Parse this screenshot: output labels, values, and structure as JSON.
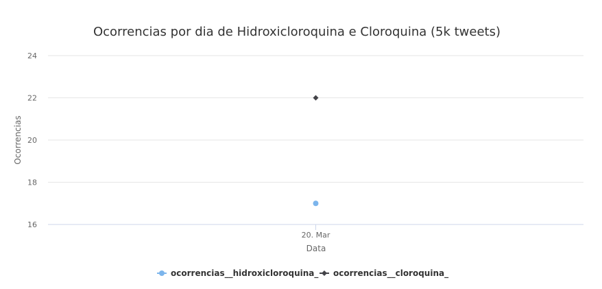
{
  "chart_data": {
    "type": "scatter",
    "title": "Ocorrencias por dia de Hidroxicloroquina e Cloroquina (5k tweets)",
    "xlabel": "Data",
    "ylabel": "Ocorrencias",
    "categories": [
      "20. Mar"
    ],
    "ylim": [
      16,
      24
    ],
    "yticks": [
      16,
      18,
      20,
      22,
      24
    ],
    "grid": true,
    "legend_position": "bottom-center",
    "series": [
      {
        "name": "ocorrencias__hidroxicloroquina_",
        "values": [
          17
        ],
        "color": "#7cb5ec",
        "marker": "circle"
      },
      {
        "name": "ocorrencias__cloroquina_",
        "values": [
          22
        ],
        "color": "#434348",
        "marker": "diamond"
      }
    ]
  }
}
